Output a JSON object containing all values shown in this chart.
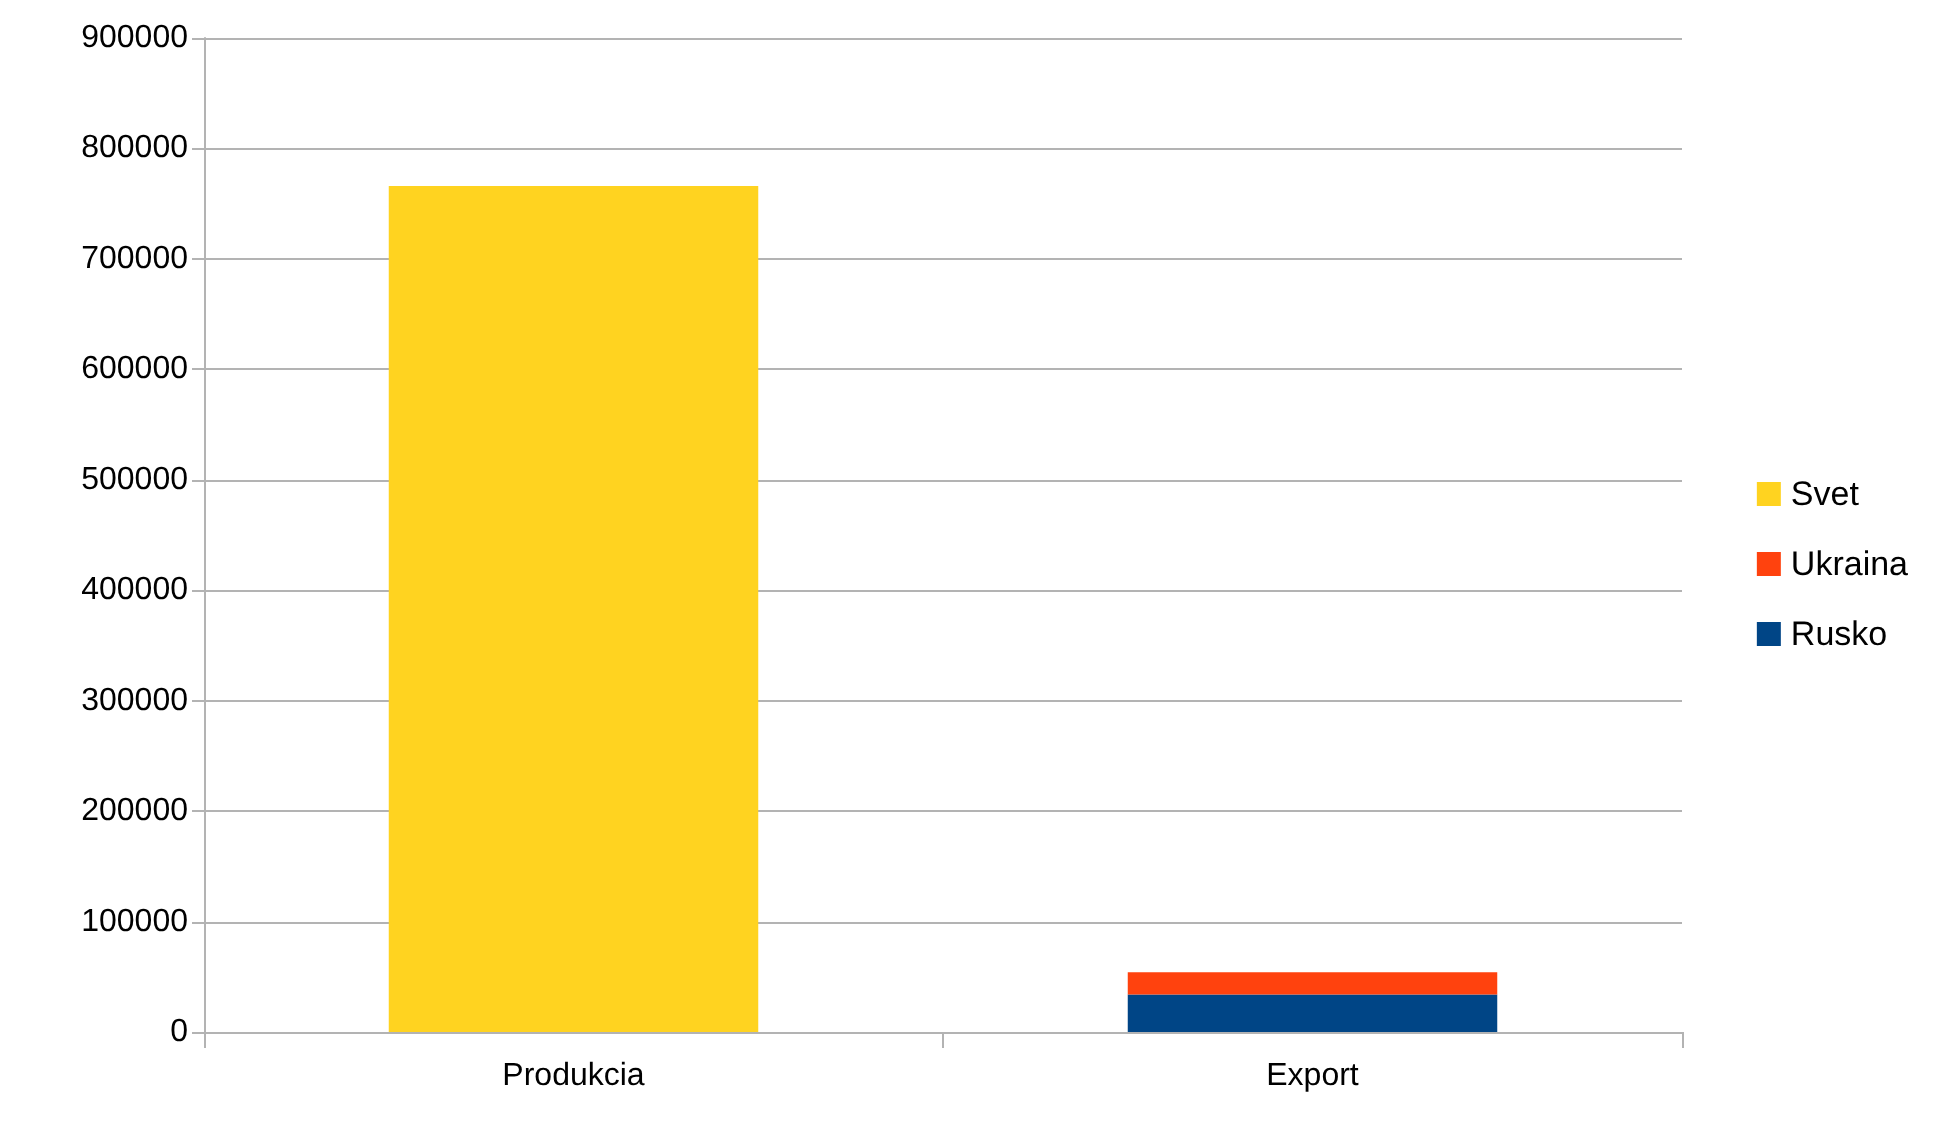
{
  "chart_data": {
    "type": "bar",
    "stacked": true,
    "categories": [
      "Produkcia",
      "Export"
    ],
    "series": [
      {
        "name": "Rusko",
        "color": "#004586",
        "values": [
          null,
          34000
        ]
      },
      {
        "name": "Ukraina",
        "color": "#ff420e",
        "values": [
          null,
          20000
        ]
      },
      {
        "name": "Svet",
        "color": "#ffd320",
        "values": [
          766000,
          null
        ]
      }
    ],
    "ylim": [
      0,
      900000
    ],
    "yticks": [
      0,
      100000,
      200000,
      300000,
      400000,
      500000,
      600000,
      700000,
      800000,
      900000
    ],
    "grid": "y",
    "legend": "right"
  }
}
